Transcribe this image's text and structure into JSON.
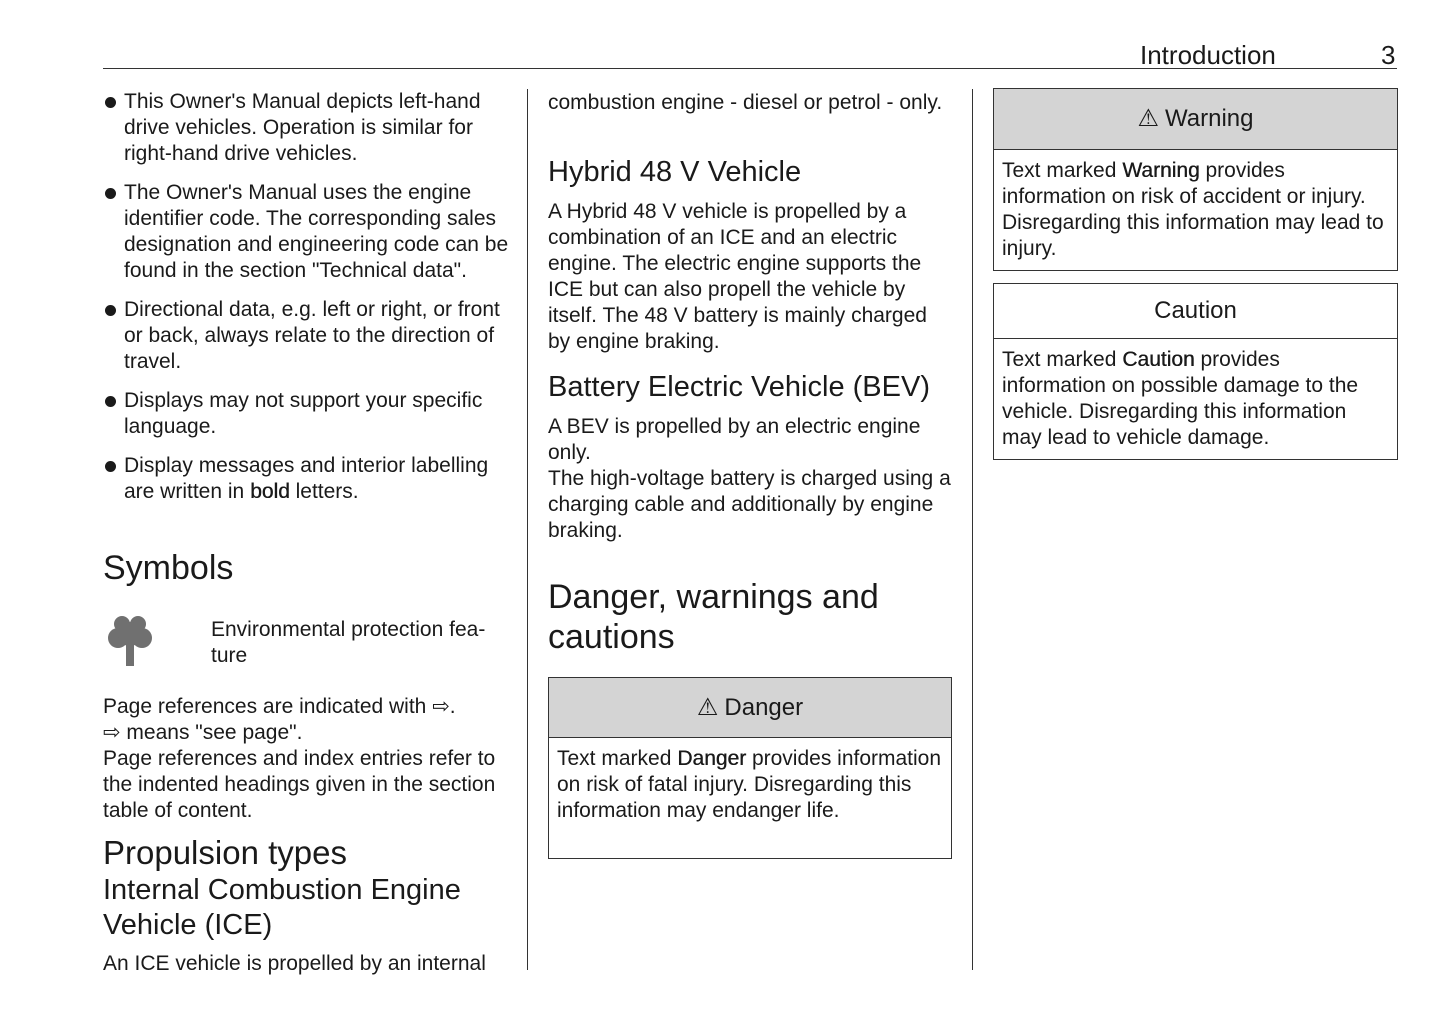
{
  "header": {
    "section": "Introduction",
    "page_number": "3"
  },
  "col1": {
    "bullets": [
      "This Owner's Manual depicts left-hand drive vehicles. Operation is similar for right-hand drive vehicles.",
      "The Owner's Manual uses the engine identifier code. The corresponding sales designation and engineering code can be found in the section \"Technical data\".",
      "Directional data, e.g. left or right, or front or back, always relate to the direction of travel.",
      "Displays may not support your specific language."
    ],
    "bullet5": {
      "before": "Display messages and interior labelling are written in ",
      "bold": "bold",
      "after": " letters."
    },
    "symbols_heading": "Symbols",
    "symbol_env": {
      "icon": "tree-icon",
      "text": "Environmental protection fea-\nture"
    },
    "page_ref_lines": [
      "Page references are indicated with ⇨.",
      "⇨ means \"see page\".",
      "Page references and index entries refer to the indented headings given in the section table of content."
    ],
    "propulsion_heading": "Propulsion types",
    "ice_heading": "Internal Combustion Engine Vehicle (ICE)",
    "ice_text": "An ICE vehicle is propelled by an internal"
  },
  "col2": {
    "ice_cont": "combustion engine - diesel or petrol - only.",
    "hybrid_heading": "Hybrid 48 V Vehicle",
    "hybrid_text": "A Hybrid 48 V vehicle is propelled by a combination of an ICE and an electric engine. The electric engine supports the ICE but can also propell the vehicle by itself. The 48 V battery is mainly charged by engine braking.",
    "bev_heading": "Battery Electric Vehicle (BEV)",
    "bev_text1": "A BEV is propelled by an electric engine only.",
    "bev_text2": "The high-voltage battery is charged using a charging cable and additionally by engine braking.",
    "danger_heading": "Danger, warnings and cautions",
    "danger_box": {
      "title": "Danger",
      "pre": "Text marked ",
      "bold": "Danger",
      "post": " provides information on risk of fatal injury. Disregarding this information may endanger life."
    }
  },
  "col3": {
    "warning_box": {
      "title": "Warning",
      "pre": "Text marked ",
      "bold": "Warning",
      "post": " provides information on risk of accident or injury. Disregarding this information may lead to injury."
    },
    "caution_box": {
      "title": "Caution",
      "pre": "Text marked ",
      "bold": "Caution",
      "post": " provides information on possible damage to the vehicle. Disregarding this information may lead to vehicle damage."
    }
  },
  "colors": {
    "box_header": "#d4d4d4",
    "text": "#1a1a1a",
    "icon_gray": "#707070"
  }
}
